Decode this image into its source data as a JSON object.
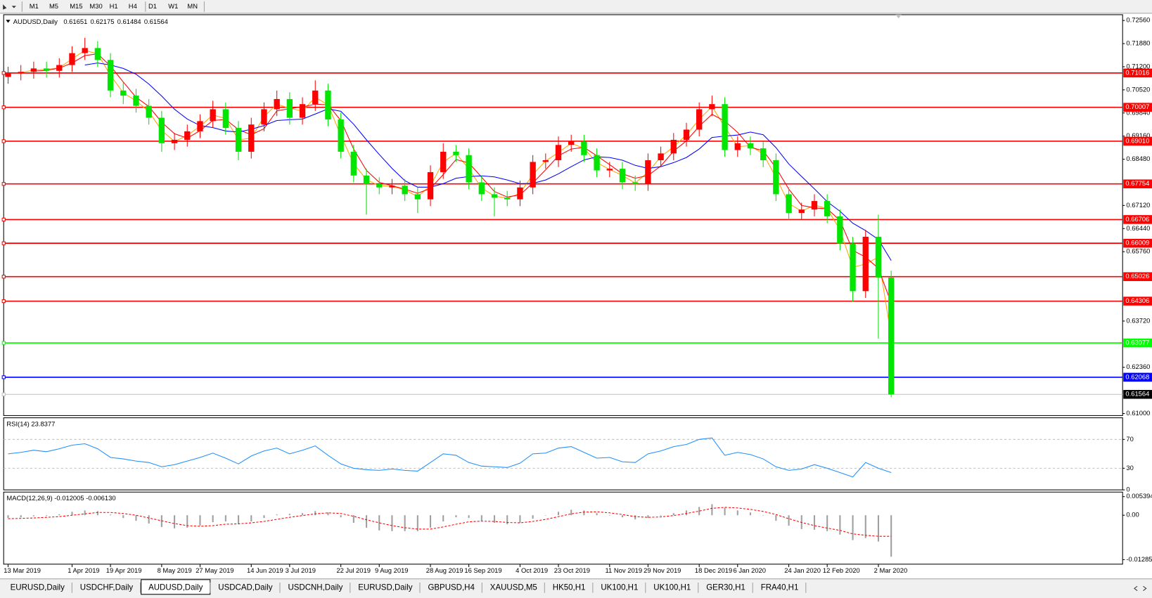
{
  "toolbar": {
    "timeframes": [
      "M1",
      "M5",
      "M15",
      "M30",
      "H1",
      "H4",
      "D1",
      "W1",
      "MN"
    ]
  },
  "tabs": {
    "items": [
      "EURUSD,Daily",
      "USDCHF,Daily",
      "AUDUSD,Daily",
      "USDCAD,Daily",
      "USDCNH,Daily",
      "EURUSD,Daily",
      "GBPUSD,H4",
      "XAUUSD,M5",
      "HK50,H1",
      "UK100,H1",
      "UK100,H1",
      "GER30,H1",
      "FRA40,H1"
    ],
    "active": "AUDUSD,Daily"
  },
  "chart_data": [
    {
      "type": "candlestick",
      "title": "AUDUSD,Daily",
      "quote": [
        0.61651,
        0.62175,
        0.61484,
        0.61564
      ],
      "up_color": "#ff0000",
      "down_color": "#00e600",
      "categories": [
        "13 Mar 2019",
        null,
        null,
        null,
        null,
        "1 Apr 2019",
        null,
        null,
        "19 Apr 2019",
        null,
        null,
        null,
        "8 May 2019",
        null,
        null,
        "27 May 2019",
        null,
        null,
        null,
        "14 Jun 2019",
        null,
        null,
        "3 Jul 2019",
        null,
        null,
        null,
        "22 Jul 2019",
        null,
        null,
        "9 Aug 2019",
        null,
        null,
        null,
        "28 Aug 2019",
        null,
        null,
        "16 Sep 2019",
        null,
        null,
        null,
        "4 Oct 2019",
        null,
        null,
        "23 Oct 2019",
        null,
        null,
        null,
        "11 Nov 2019",
        null,
        null,
        "29 Nov 2019",
        null,
        null,
        null,
        "18 Dec 2019",
        null,
        null,
        "6 Jan 2020",
        null,
        null,
        null,
        "24 Jan 2020",
        null,
        null,
        "12 Feb 2020",
        null,
        null,
        null,
        "2 Mar 2020",
        null
      ],
      "open": [
        0.709,
        0.71,
        0.7105,
        0.7115,
        0.7108,
        0.7125,
        0.716,
        0.7175,
        0.714,
        0.705,
        0.7035,
        0.7005,
        0.697,
        0.6895,
        0.6905,
        0.693,
        0.696,
        0.6995,
        0.694,
        0.687,
        0.695,
        0.6995,
        0.7025,
        0.697,
        0.701,
        0.705,
        0.6965,
        0.687,
        0.68,
        0.6775,
        0.6765,
        0.677,
        0.6745,
        0.673,
        0.681,
        0.687,
        0.686,
        0.678,
        0.6745,
        0.6735,
        0.673,
        0.6765,
        0.684,
        0.6845,
        0.689,
        0.69,
        0.686,
        0.6815,
        0.682,
        0.678,
        0.6775,
        0.6845,
        0.6865,
        0.6905,
        0.6935,
        0.6995,
        0.701,
        0.6875,
        0.6895,
        0.688,
        0.6845,
        0.6745,
        0.669,
        0.67,
        0.6725,
        0.668,
        0.66,
        0.646,
        0.662,
        0.65
      ],
      "high": [
        0.712,
        0.7125,
        0.7135,
        0.7135,
        0.7145,
        0.718,
        0.7205,
        0.7195,
        0.716,
        0.7075,
        0.7055,
        0.7025,
        0.699,
        0.6925,
        0.695,
        0.698,
        0.702,
        0.7015,
        0.696,
        0.697,
        0.7015,
        0.705,
        0.7045,
        0.703,
        0.708,
        0.707,
        0.6985,
        0.689,
        0.682,
        0.6795,
        0.679,
        0.679,
        0.6765,
        0.683,
        0.6895,
        0.689,
        0.688,
        0.68,
        0.6765,
        0.6755,
        0.6785,
        0.686,
        0.6865,
        0.6915,
        0.692,
        0.692,
        0.688,
        0.684,
        0.684,
        0.68,
        0.6865,
        0.6885,
        0.6925,
        0.6955,
        0.7015,
        0.7035,
        0.703,
        0.6915,
        0.6915,
        0.69,
        0.6865,
        0.6765,
        0.672,
        0.6745,
        0.6745,
        0.67,
        0.662,
        0.664,
        0.6685,
        0.652
      ],
      "low": [
        0.707,
        0.708,
        0.7085,
        0.7088,
        0.7088,
        0.7105,
        0.714,
        0.712,
        0.703,
        0.701,
        0.6985,
        0.695,
        0.687,
        0.6875,
        0.6885,
        0.691,
        0.694,
        0.692,
        0.6845,
        0.685,
        0.693,
        0.6975,
        0.695,
        0.695,
        0.699,
        0.6945,
        0.685,
        0.678,
        0.6685,
        0.6745,
        0.6745,
        0.6725,
        0.669,
        0.671,
        0.679,
        0.684,
        0.676,
        0.6725,
        0.668,
        0.671,
        0.671,
        0.6745,
        0.682,
        0.6825,
        0.687,
        0.684,
        0.6795,
        0.6795,
        0.676,
        0.6755,
        0.6755,
        0.6825,
        0.6845,
        0.6885,
        0.6915,
        0.6975,
        0.6855,
        0.6855,
        0.686,
        0.6825,
        0.6725,
        0.667,
        0.667,
        0.668,
        0.666,
        0.658,
        0.643,
        0.644,
        0.632,
        0.6148
      ],
      "close": [
        0.71,
        0.7105,
        0.7115,
        0.7108,
        0.7125,
        0.716,
        0.7175,
        0.714,
        0.705,
        0.7035,
        0.7005,
        0.697,
        0.6895,
        0.6905,
        0.693,
        0.696,
        0.6995,
        0.694,
        0.687,
        0.695,
        0.6995,
        0.7025,
        0.697,
        0.701,
        0.705,
        0.6965,
        0.687,
        0.68,
        0.6775,
        0.6765,
        0.677,
        0.6745,
        0.673,
        0.681,
        0.687,
        0.686,
        0.678,
        0.6745,
        0.6735,
        0.673,
        0.6765,
        0.684,
        0.6845,
        0.689,
        0.69,
        0.686,
        0.6815,
        0.682,
        0.678,
        0.6775,
        0.6845,
        0.6865,
        0.6905,
        0.6935,
        0.6995,
        0.701,
        0.6875,
        0.6895,
        0.688,
        0.6845,
        0.6745,
        0.669,
        0.67,
        0.6725,
        0.668,
        0.66,
        0.646,
        0.662,
        0.65,
        0.61564
      ],
      "lines": [
        {
          "color": "#ffa500",
          "values": [
            null,
            0.7103,
            0.711,
            0.7112,
            0.7117,
            0.7143,
            0.7168,
            0.7158,
            0.7095,
            0.7043,
            0.702,
            0.6988,
            0.6933,
            0.69,
            0.6918,
            0.6945,
            0.6978,
            0.6968,
            0.6905,
            0.691,
            0.6973,
            0.701,
            0.6998,
            0.699,
            0.703,
            0.7008,
            0.6918,
            0.6835,
            0.6788,
            0.677,
            0.6768,
            0.6758,
            0.6738,
            0.677,
            0.684,
            0.6865,
            0.682,
            0.6763,
            0.674,
            0.6733,
            0.6748,
            0.6803,
            0.6843,
            0.6868,
            0.6895,
            0.688,
            0.6838,
            0.6818,
            0.68,
            0.6778,
            0.681,
            0.6855,
            0.6885,
            0.692,
            0.6965,
            0.7003,
            0.6943,
            0.6885,
            0.6888,
            0.6863,
            0.6795,
            0.6718,
            0.6695,
            0.6713,
            0.6703,
            0.664,
            0.653,
            0.654,
            0.656,
            0.6328
          ]
        },
        {
          "color": "#ff0000",
          "values": [
            null,
            null,
            0.7107,
            0.7109,
            0.7116,
            0.7131,
            0.7153,
            0.7158,
            0.7122,
            0.7075,
            0.703,
            0.7003,
            0.6957,
            0.6923,
            0.691,
            0.6932,
            0.6962,
            0.6965,
            0.6935,
            0.692,
            0.6938,
            0.699,
            0.6997,
            0.7002,
            0.701,
            0.7008,
            0.6962,
            0.6878,
            0.6815,
            0.678,
            0.677,
            0.676,
            0.6748,
            0.6762,
            0.6803,
            0.6847,
            0.6837,
            0.6795,
            0.6753,
            0.6737,
            0.6743,
            0.6778,
            0.6817,
            0.6858,
            0.6878,
            0.6883,
            0.6858,
            0.6832,
            0.6805,
            0.6792,
            0.68,
            0.6828,
            0.6872,
            0.6902,
            0.6945,
            0.698,
            0.696,
            0.6927,
            0.6883,
            0.6873,
            0.6823,
            0.676,
            0.6712,
            0.6705,
            0.6702,
            0.6668,
            0.658,
            0.656,
            0.6527,
            0.6425
          ]
        },
        {
          "color": "#0000ff",
          "values": [
            null,
            null,
            null,
            null,
            null,
            null,
            0.7125,
            0.7131,
            0.7125,
            0.7115,
            0.7098,
            0.7069,
            0.7034,
            0.6995,
            0.6966,
            0.6947,
            0.6941,
            0.6931,
            0.6928,
            0.6936,
            0.6947,
            0.6962,
            0.6964,
            0.6966,
            0.6981,
            0.6996,
            0.6989,
            0.6951,
            0.6905,
            0.6862,
            0.6821,
            0.6785,
            0.6766,
            0.6766,
            0.6776,
            0.6792,
            0.6797,
            0.6799,
            0.6796,
            0.6787,
            0.6776,
            0.6777,
            0.6787,
            0.6805,
            0.6826,
            0.6846,
            0.6855,
            0.6853,
            0.6845,
            0.683,
            0.6821,
            0.6826,
            0.6838,
            0.6853,
            0.6878,
            0.6912,
            0.6916,
            0.6919,
            0.6928,
            0.692,
            0.6882,
            0.6834,
            0.6797,
            0.6761,
            0.6723,
            0.6695,
            0.666,
            0.6638,
            0.6612,
            0.655
          ]
        }
      ],
      "levels": [
        {
          "value": 0.71016,
          "color": "#ff0000"
        },
        {
          "value": 0.70007,
          "color": "#ff0000"
        },
        {
          "value": 0.6901,
          "label": "0.69010",
          "color": "#ff0000"
        },
        {
          "value": 0.67754,
          "color": "#ff0000"
        },
        {
          "value": 0.66706,
          "color": "#ff0000"
        },
        {
          "value": 0.66009,
          "color": "#ff0000"
        },
        {
          "value": 0.65026,
          "color": "#ff0000"
        },
        {
          "value": 0.64306,
          "color": "#ff0000"
        },
        {
          "value": 0.63077,
          "color": "#00ff00"
        },
        {
          "value": 0.62068,
          "color": "#0000ff"
        },
        {
          "value": 0.61564,
          "color": "#c0c0c0",
          "box": "#000000"
        }
      ],
      "ylim": [
        0.6094,
        0.7273
      ],
      "yticks": [
        {
          "value": 0.7256,
          "label": "0.72560"
        },
        {
          "value": 0.7188,
          "label": "0.71880"
        },
        {
          "value": 0.712,
          "label": "0.71200"
        },
        {
          "value": 0.7052,
          "label": "0.70520"
        },
        {
          "value": 0.6984,
          "label": "0.69840"
        },
        {
          "value": 0.6916,
          "label": "0.69160"
        },
        {
          "value": 0.6848,
          "label": "0.68480"
        },
        {
          "value": 0.6712,
          "label": "0.67120"
        },
        {
          "value": 0.6644,
          "label": "0.66440"
        },
        {
          "value": 0.6576,
          "label": "0.65760"
        },
        {
          "value": 0.6372,
          "label": "0.63720"
        },
        {
          "value": 0.6236,
          "label": "0.62360"
        },
        {
          "value": 0.61,
          "label": "0.61000"
        }
      ]
    },
    {
      "type": "line",
      "title": "RSI(14) 23.8377",
      "color": "#1e90ff",
      "ylim": [
        0,
        100
      ],
      "yticks": [
        70,
        30,
        0
      ],
      "values": [
        50,
        52,
        55,
        53,
        57,
        62,
        64,
        57,
        45,
        43,
        40,
        38,
        32,
        35,
        40,
        45,
        51,
        44,
        36,
        47,
        54,
        58,
        50,
        55,
        61,
        48,
        36,
        30,
        28,
        27,
        29,
        27,
        26,
        38,
        50,
        48,
        38,
        33,
        32,
        31,
        37,
        50,
        51,
        58,
        60,
        52,
        44,
        45,
        39,
        38,
        50,
        54,
        60,
        63,
        70,
        72,
        48,
        52,
        49,
        43,
        32,
        27,
        29,
        35,
        30,
        24,
        18,
        38,
        30,
        24
      ]
    },
    {
      "type": "macd",
      "title": "MACD(12,26,9) -0.012005 -0.006130",
      "hist_color": "#a0a0a0",
      "signal_color": "#ff0000",
      "ylim": [
        -0.01416,
        0.0067
      ],
      "yticks": [
        {
          "value": 0.005394,
          "label": "0.005394"
        },
        {
          "value": 0,
          "label": "0.00"
        },
        {
          "value": -0.012853,
          "label": "-0.012853"
        }
      ],
      "histogram": [
        -0.0008,
        -0.0006,
        -0.0003,
        -0.0002,
        0.0003,
        0.001,
        0.0014,
        0.0012,
        0.0002,
        -0.0008,
        -0.0016,
        -0.0024,
        -0.0034,
        -0.0038,
        -0.0036,
        -0.003,
        -0.002,
        -0.0018,
        -0.0024,
        -0.0018,
        -0.0008,
        0.0002,
        0.0004,
        0.0006,
        0.0012,
        0.0008,
        -0.0006,
        -0.0022,
        -0.0036,
        -0.0044,
        -0.0046,
        -0.0046,
        -0.0046,
        -0.0036,
        -0.0018,
        -0.0006,
        -0.0008,
        -0.0016,
        -0.0022,
        -0.0026,
        -0.0022,
        -0.001,
        0,
        0.001,
        0.0016,
        0.0014,
        0.0006,
        0,
        -0.0006,
        -0.0012,
        -0.0008,
        -0.0002,
        0.0006,
        0.0014,
        0.0024,
        0.0032,
        0.0022,
        0.0014,
        0.0008,
        0,
        -0.0016,
        -0.003,
        -0.004,
        -0.0042,
        -0.0046,
        -0.0056,
        -0.0072,
        -0.0066,
        -0.0076,
        -0.012
      ],
      "signal": [
        -0.001,
        -0.0009,
        -0.0008,
        -0.0006,
        -0.0004,
        0,
        0.0004,
        0.0008,
        0.0008,
        0.0005,
        0,
        -0.0008,
        -0.0016,
        -0.0024,
        -0.003,
        -0.0032,
        -0.003,
        -0.0026,
        -0.0025,
        -0.0022,
        -0.0018,
        -0.0012,
        -0.0006,
        -0.0001,
        0.0004,
        0.0007,
        0.0005,
        -0.0003,
        -0.0013,
        -0.0022,
        -0.003,
        -0.0036,
        -0.004,
        -0.004,
        -0.0034,
        -0.0026,
        -0.0019,
        -0.0017,
        -0.0018,
        -0.0021,
        -0.0022,
        -0.0018,
        -0.0012,
        -0.0004,
        0.0004,
        0.0009,
        0.001,
        0.0007,
        0.0002,
        -0.0004,
        -0.0006,
        -0.0005,
        -0.0001,
        0.0005,
        0.0012,
        0.002,
        0.0023,
        0.0021,
        0.0017,
        0.0011,
        0.0002,
        -0.001,
        -0.0021,
        -0.003,
        -0.0037,
        -0.0044,
        -0.0054,
        -0.0058,
        -0.0061,
        -0.0061
      ]
    }
  ]
}
